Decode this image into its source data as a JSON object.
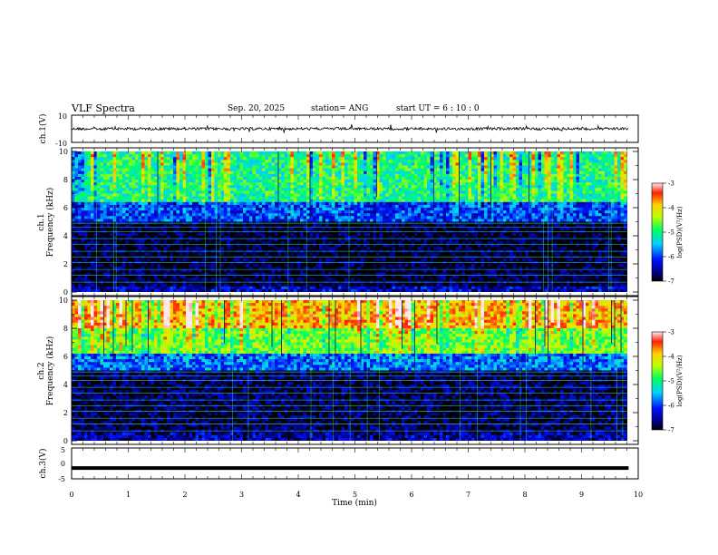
{
  "header": {
    "title": "VLF Spectra",
    "date": "Sep. 20, 2025",
    "station": "station= ANG",
    "start": "start  UT  =   6  : 10 : 0"
  },
  "chart_data": [
    {
      "id": "ch1-waveform",
      "type": "line",
      "ylabel": "ch.1(V)",
      "ylim": [
        -10,
        10
      ],
      "yticks": [
        "10",
        "-10"
      ],
      "xlim": [
        0,
        10
      ],
      "data_end": 9.83,
      "baseline": 0,
      "description": "noisy waveform with small amplitude spikes"
    },
    {
      "id": "ch1-spectrogram",
      "type": "heatmap",
      "channel_label": "ch.1",
      "ylabel": "Frequency (kHz)",
      "ylim": [
        0,
        10
      ],
      "yticks": [
        "0",
        "2",
        "4",
        "6",
        "8",
        "10"
      ],
      "xlim": [
        0,
        10
      ],
      "colorbar": {
        "label": "log(PSD)(V²/Hz)",
        "range": [
          -7,
          -3
        ],
        "ticks": [
          "-3",
          "-4",
          "-5",
          "-6",
          "-7"
        ]
      },
      "bands": [
        {
          "from": 0,
          "to": 0.5,
          "level": -6.4
        },
        {
          "from": 0.5,
          "to": 5.1,
          "level": -6.9
        },
        {
          "from": 5.1,
          "to": 6.5,
          "level": -6.0
        },
        {
          "from": 6.5,
          "to": 10,
          "level": -5.0
        }
      ]
    },
    {
      "id": "ch2-spectrogram",
      "type": "heatmap",
      "channel_label": "ch.2",
      "ylabel": "Frequency (kHz)",
      "ylim": [
        0,
        10
      ],
      "yticks": [
        "0",
        "2",
        "4",
        "6",
        "8",
        "10"
      ],
      "xlim": [
        0,
        10
      ],
      "colorbar": {
        "label": "log(PSD)(V²/Hz)",
        "range": [
          -7,
          -3
        ],
        "ticks": [
          "-3",
          "-4",
          "-5",
          "-6",
          "-7"
        ]
      },
      "bands": [
        {
          "from": 0,
          "to": 0.6,
          "level": -6.5
        },
        {
          "from": 0.6,
          "to": 5.0,
          "level": -6.8
        },
        {
          "from": 5.0,
          "to": 6.2,
          "level": -5.8
        },
        {
          "from": 6.2,
          "to": 8.0,
          "level": -4.6
        },
        {
          "from": 8.0,
          "to": 10,
          "level": -3.8
        }
      ]
    },
    {
      "id": "ch3-waveform",
      "type": "line",
      "ylabel": "ch.3(V)",
      "ylim": [
        -5,
        5
      ],
      "yticks": [
        "5",
        "0",
        "-5"
      ],
      "xlim": [
        0,
        10
      ],
      "data_end": 9.83,
      "baseline": -1.5,
      "description": "flat thick line near -1.5 V"
    },
    {
      "id": "time-axis",
      "type": "axis",
      "xlabel": "Time (min)",
      "xticks": [
        "0",
        "1",
        "2",
        "3",
        "4",
        "5",
        "6",
        "7",
        "8",
        "9",
        "10"
      ]
    }
  ]
}
